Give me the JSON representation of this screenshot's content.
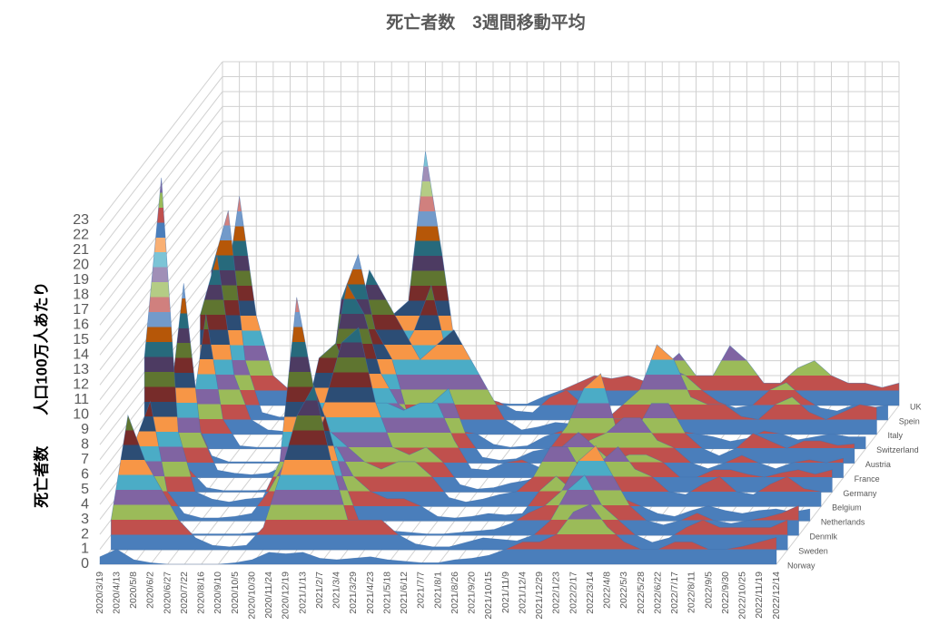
{
  "chart_data": {
    "type": "surface",
    "title": "死亡者数　3週間移動平均",
    "y_label": "死亡者数　　人口100万人あたり",
    "categories": [
      "2020/3/19",
      "2020/4/13",
      "2020/5/8",
      "2020/6/2",
      "2020/6/27",
      "2020/7/22",
      "2020/8/16",
      "2020/9/10",
      "2020/10/5",
      "2020/10/30",
      "2020/11/24",
      "2020/12/19",
      "2021/1/13",
      "2021/2/7",
      "2021/3/4",
      "2021/3/29",
      "2021/4/23",
      "2021/5/18",
      "2021/6/12",
      "2021/7/7",
      "2021/8/1",
      "2021/8/26",
      "2021/9/20",
      "2021/10/15",
      "2021/11/9",
      "2021/12/4",
      "2021/12/29",
      "2022/1/23",
      "2022/2/17",
      "2022/3/14",
      "2022/4/8",
      "2022/5/3",
      "2022/5/28",
      "2022/6/22",
      "2022/7/17",
      "2022/8/11",
      "2022/9/5",
      "2022/9/30",
      "2022/10/25",
      "2022/11/19",
      "2022/12/14"
    ],
    "series": [
      {
        "name": "Norway",
        "values": [
          0.5,
          1,
          0.3,
          0.1,
          0,
          0,
          0,
          0,
          0.1,
          0.3,
          0.8,
          0.7,
          0.8,
          0.4,
          0.3,
          0.4,
          0.5,
          0.3,
          0.2,
          0.1,
          0.1,
          0.3,
          0.4,
          0.6,
          1,
          1.5,
          1.5,
          2,
          3.5,
          4,
          2.5,
          1.5,
          1,
          1,
          1.5,
          1.5,
          1,
          1,
          1.2,
          1.5,
          1.8
        ]
      },
      {
        "name": "Sweden",
        "values": [
          2,
          9,
          6,
          4,
          2,
          0.8,
          0.3,
          0.2,
          0.3,
          1.5,
          5,
          9,
          11,
          6,
          2,
          2,
          2,
          1,
          0.4,
          0.2,
          0.2,
          0.5,
          0.8,
          0.7,
          0.6,
          1,
          2,
          4,
          5,
          3,
          2,
          1,
          0.5,
          0.8,
          1.5,
          2,
          1.5,
          1.5,
          1.5,
          1.5,
          2
        ]
      },
      {
        "name": "Denmlk",
        "values": [
          1,
          2.5,
          1,
          0.3,
          0.1,
          0.1,
          0.1,
          0.1,
          0.2,
          0.5,
          2,
          5,
          8,
          4,
          1,
          0.5,
          0.3,
          0.2,
          0.1,
          0.1,
          0.2,
          0.3,
          0.4,
          0.8,
          1.5,
          2,
          3,
          5,
          6,
          4,
          2,
          1,
          0.7,
          1,
          1.5,
          1,
          0.8,
          1,
          1.2,
          1.5,
          2
        ]
      },
      {
        "name": "Netherlands",
        "values": [
          5,
          8,
          2,
          0.5,
          0.2,
          0.2,
          0.3,
          0.5,
          2,
          4,
          3,
          3.5,
          5,
          3,
          2,
          1.5,
          1.5,
          1,
          0.3,
          0.2,
          0.3,
          0.5,
          0.4,
          0.5,
          2,
          3,
          2,
          1.5,
          2,
          1.5,
          1,
          0.5,
          0.3,
          0.7,
          1,
          0.7,
          0.5,
          0.7,
          0.8,
          0.6,
          0.8
        ]
      },
      {
        "name": "Belgium",
        "values": [
          10,
          22,
          5,
          1,
          0.5,
          0.3,
          0.5,
          0.6,
          3,
          14,
          8,
          5,
          4,
          3,
          2.5,
          3,
          3,
          2,
          0.6,
          0.3,
          0.5,
          0.8,
          1,
          2,
          4,
          4,
          2,
          3,
          4,
          2.5,
          2,
          1,
          0.8,
          1.5,
          2,
          1,
          0.8,
          1.5,
          2,
          1.2,
          1
        ]
      },
      {
        "name": "Germany",
        "values": [
          0.5,
          3,
          1.5,
          0.3,
          0.1,
          0.1,
          0.1,
          0.2,
          0.5,
          3,
          6,
          10,
          11,
          6,
          3,
          2.5,
          3,
          2,
          0.5,
          0.2,
          0.3,
          0.6,
          0.8,
          1.2,
          3,
          4,
          3,
          2,
          2.5,
          2.5,
          2,
          1,
          1,
          1.5,
          1.5,
          1.2,
          1,
          1.3,
          1.5,
          1.2,
          1.5
        ]
      },
      {
        "name": "France",
        "values": [
          3,
          13,
          3,
          0.5,
          0.3,
          0.2,
          0.3,
          0.8,
          3,
          8,
          9,
          6,
          5,
          5,
          4.5,
          5,
          5,
          2.5,
          0.6,
          0.5,
          1,
          1.2,
          0.7,
          0.5,
          1,
          2.5,
          3,
          4,
          4,
          2.5,
          2,
          1,
          0.6,
          1,
          1.5,
          1,
          0.6,
          1,
          1.2,
          1,
          1.3
        ]
      },
      {
        "name": "Austria",
        "values": [
          0.5,
          3,
          0.5,
          0.1,
          0.1,
          0.1,
          0.1,
          0.3,
          1,
          6,
          12,
          10,
          6,
          4,
          3,
          4,
          5,
          2,
          0.4,
          0.2,
          0.3,
          0.8,
          1,
          2.5,
          5,
          6,
          2,
          2,
          4,
          4,
          2,
          1,
          0.5,
          1,
          2,
          1.5,
          1,
          1.5,
          1.5,
          1.2,
          1.3
        ]
      },
      {
        "name": "Switzerland",
        "values": [
          1,
          9,
          2,
          0.2,
          0.1,
          0.1,
          0.1,
          0.2,
          1,
          10,
          13,
          8,
          6,
          2,
          1,
          1,
          1.2,
          1,
          0.3,
          0.1,
          0.2,
          0.8,
          1.2,
          0.8,
          1,
          2,
          2,
          1.5,
          1.5,
          1.2,
          1,
          0.8,
          0.5,
          0.7,
          1.2,
          1,
          0.6,
          0.8,
          1,
          0.8,
          0.8
        ]
      },
      {
        "name": "Italy",
        "values": [
          8,
          12,
          4,
          1,
          0.3,
          0.2,
          0.2,
          0.3,
          0.6,
          6,
          11,
          9,
          7,
          5,
          6,
          7,
          5,
          3,
          1,
          0.3,
          0.5,
          0.8,
          0.7,
          0.6,
          1,
          2,
          3,
          6,
          5,
          2.5,
          2,
          2,
          1.2,
          1,
          2,
          2.5,
          1.5,
          1,
          1.5,
          2,
          1.8
        ]
      },
      {
        "name": "Spein",
        "values": [
          10,
          14,
          4,
          0.5,
          0.2,
          0.2,
          1,
          2,
          3,
          5,
          6,
          4,
          6,
          9,
          4,
          1.5,
          1.5,
          1.2,
          0.6,
          0.5,
          1.5,
          2,
          1,
          0.5,
          0.3,
          0.8,
          2,
          3.5,
          3,
          2,
          1.2,
          0.8,
          1,
          2,
          2.5,
          1.5,
          0.8,
          0.6,
          1,
          0.8,
          1
        ]
      },
      {
        "name": "UK",
        "values": [
          6,
          14,
          6,
          2,
          1,
          0.3,
          0.1,
          0.2,
          1,
          4,
          6,
          7,
          17,
          10,
          2,
          0.5,
          0.2,
          0.1,
          0.1,
          0.6,
          1,
          1.5,
          2,
          1.8,
          2,
          1.6,
          2.5,
          3.5,
          2,
          2,
          4,
          3,
          1.5,
          1.5,
          2.5,
          3,
          2,
          1.5,
          1.5,
          1.2,
          1.5
        ]
      }
    ],
    "band_colors": [
      "#4a7ebb",
      "#c0504d",
      "#9bbb59",
      "#8064a2",
      "#4bacc6",
      "#f79646",
      "#2c4d75",
      "#772c2a",
      "#5f7530",
      "#4d3b62",
      "#276a7c",
      "#b65708",
      "#729aca",
      "#d0807e",
      "#b4cc85",
      "#a08fb7",
      "#7cc4d6",
      "#f9b074"
    ],
    "ylim": [
      0,
      23
    ],
    "yticks": [
      0,
      1,
      2,
      3,
      4,
      5,
      6,
      7,
      8,
      9,
      10,
      11,
      12,
      13,
      14,
      15,
      16,
      17,
      18,
      19,
      20,
      21,
      22,
      23
    ],
    "grid": true
  }
}
